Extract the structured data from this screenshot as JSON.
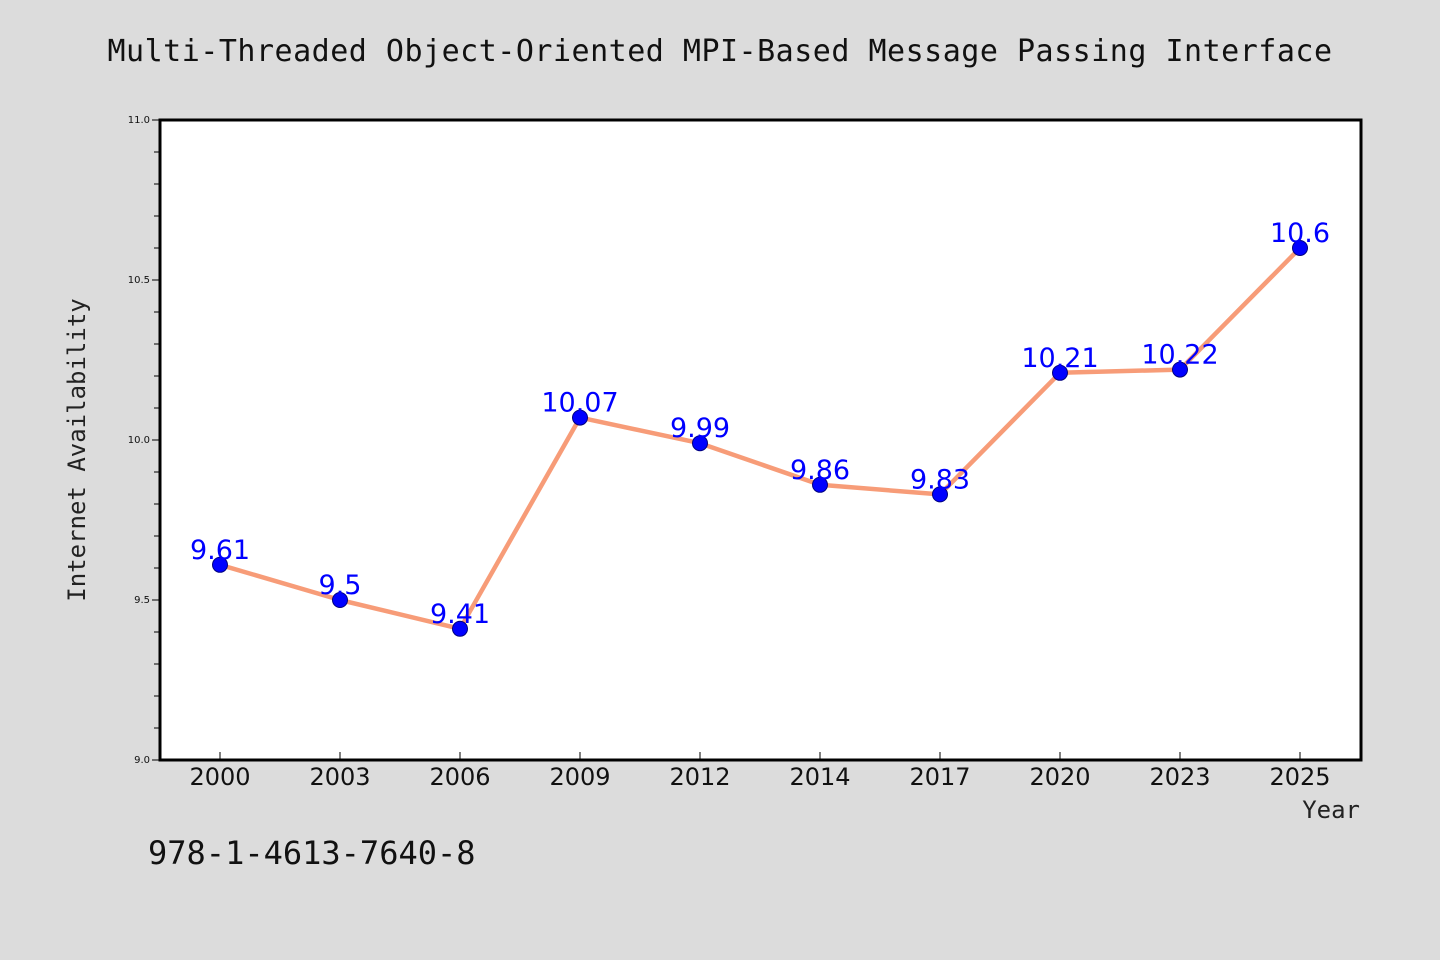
{
  "chart_data": {
    "type": "line",
    "title": "Multi-Threaded Object-Oriented MPI-Based Message Passing Interface",
    "xlabel": "Year",
    "ylabel": "Internet Availability",
    "categories": [
      "2000",
      "2003",
      "2006",
      "2009",
      "2012",
      "2014",
      "2017",
      "2020",
      "2023",
      "2025"
    ],
    "series": [
      {
        "values": [
          9.61,
          9.5,
          9.41,
          10.07,
          9.99,
          9.86,
          9.83,
          10.21,
          10.22,
          10.6
        ],
        "data_labels": [
          "9.61",
          "9.5",
          "9.41",
          "10.07",
          "9.99",
          "9.86",
          "9.83",
          "10.21",
          "10.22",
          "10.6"
        ],
        "line_color": "#f79c78",
        "marker_color": "#0000ff"
      }
    ],
    "ylim": [
      9.0,
      11.0
    ],
    "y_ticks": [
      "9.0",
      "9.5",
      "10.0",
      "10.5",
      "11.0"
    ],
    "grid": false,
    "background_color": "#dcdcdc",
    "plot_background_color": "#ffffff"
  },
  "footer": {
    "isbn": "978-1-4613-7640-8"
  }
}
